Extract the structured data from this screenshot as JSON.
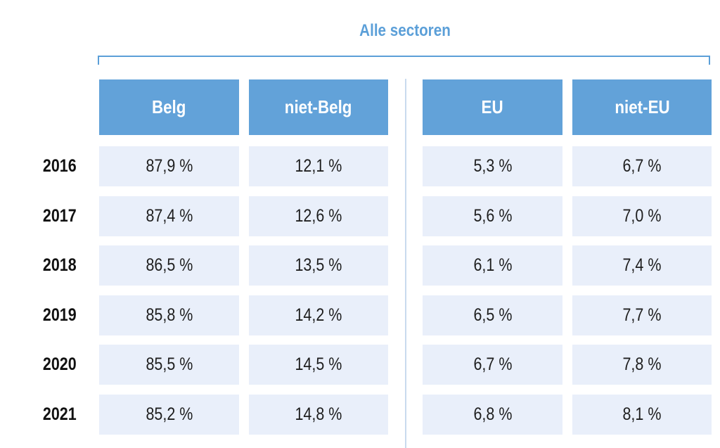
{
  "group_header": "Alle sectoren",
  "chart_data": {
    "type": "table",
    "columns": [
      "Belg",
      "niet-Belg",
      "EU",
      "niet-EU"
    ],
    "rows": [
      {
        "year": "2016",
        "values": [
          "87,9 %",
          "12,1 %",
          "5,3 %",
          "6,7 %"
        ]
      },
      {
        "year": "2017",
        "values": [
          "87,4 %",
          "12,6 %",
          "5,6 %",
          "7,0 %"
        ]
      },
      {
        "year": "2018",
        "values": [
          "86,5 %",
          "13,5 %",
          "6,1 %",
          "7,4 %"
        ]
      },
      {
        "year": "2019",
        "values": [
          "85,8 %",
          "14,2 %",
          "6,5 %",
          "7,7 %"
        ]
      },
      {
        "year": "2020",
        "values": [
          "85,5 %",
          "14,5 %",
          "6,7 %",
          "7,8 %"
        ]
      },
      {
        "year": "2021",
        "values": [
          "85,2 %",
          "14,8 %",
          "6,8 %",
          "8,1 %"
        ]
      }
    ]
  },
  "colors": {
    "header": "#62a2d9",
    "accent": "#5b9fd8",
    "cell": "#e9effa",
    "divider": "#c9daee"
  }
}
